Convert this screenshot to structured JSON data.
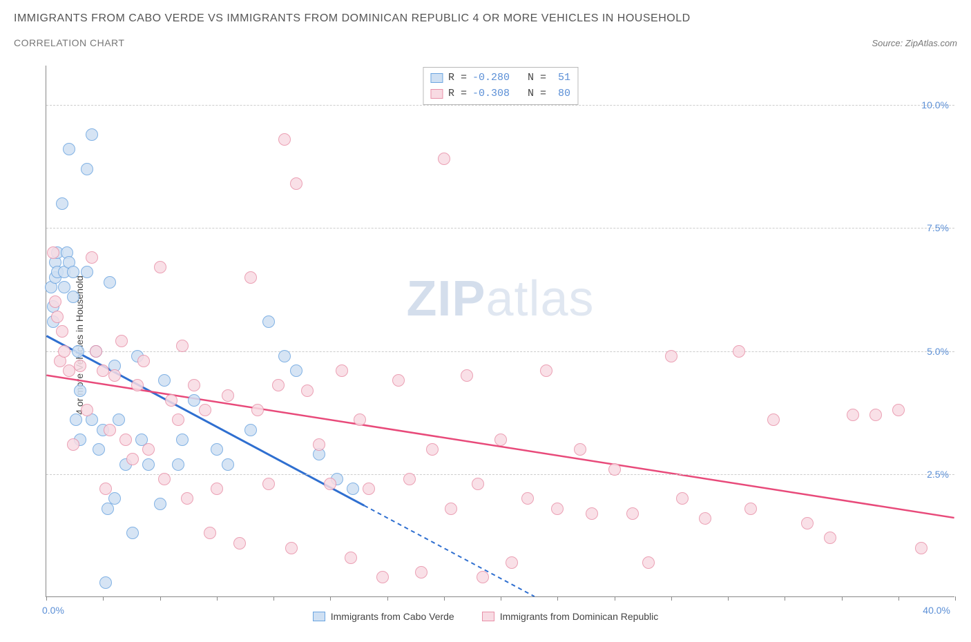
{
  "header": {
    "title": "IMMIGRANTS FROM CABO VERDE VS IMMIGRANTS FROM DOMINICAN REPUBLIC 4 OR MORE VEHICLES IN HOUSEHOLD",
    "subtitle": "CORRELATION CHART",
    "source": "Source: ZipAtlas.com"
  },
  "watermark": {
    "bold": "ZIP",
    "rest": "atlas"
  },
  "chart": {
    "type": "scatter",
    "ylabel": "4 or more Vehicles in Household",
    "xlim": [
      0,
      40
    ],
    "ylim": [
      0,
      10.8
    ],
    "x_ticks_minor": [
      0,
      2.5,
      5,
      7.5,
      10,
      12.5,
      15,
      17.5,
      20,
      22.5,
      25,
      27.5,
      30,
      32.5,
      35,
      37.5,
      40
    ],
    "x_tick_labels": {
      "left": "0.0%",
      "right": "40.0%"
    },
    "y_gridlines": [
      2.5,
      5.0,
      7.5,
      10.0
    ],
    "y_tick_labels": [
      "2.5%",
      "5.0%",
      "7.5%",
      "10.0%"
    ],
    "grid_color": "#cccccc",
    "background_color": "#ffffff",
    "axis_label_color": "#5b8fd6",
    "point_radius": 9,
    "point_stroke_width": 1.5,
    "series": [
      {
        "name": "Immigrants from Cabo Verde",
        "stroke": "#6aa4e0",
        "fill": "#cfe0f3",
        "trend_color": "#2f6fd0",
        "trend_width": 3,
        "trend_solid_xend": 14,
        "trend_start": [
          0,
          5.3
        ],
        "trend_end": [
          21.5,
          0
        ],
        "R": "-0.280",
        "N": "51",
        "points": [
          [
            0.2,
            6.3
          ],
          [
            0.3,
            5.9
          ],
          [
            0.3,
            5.6
          ],
          [
            0.4,
            6.8
          ],
          [
            0.4,
            6.5
          ],
          [
            0.5,
            7.0
          ],
          [
            0.5,
            6.6
          ],
          [
            0.7,
            8.0
          ],
          [
            0.8,
            6.6
          ],
          [
            0.8,
            6.3
          ],
          [
            0.9,
            7.0
          ],
          [
            1.0,
            9.1
          ],
          [
            1.0,
            6.8
          ],
          [
            1.2,
            6.6
          ],
          [
            1.2,
            6.1
          ],
          [
            1.3,
            3.6
          ],
          [
            1.4,
            5.0
          ],
          [
            1.5,
            4.2
          ],
          [
            1.5,
            3.2
          ],
          [
            1.8,
            8.7
          ],
          [
            1.8,
            6.6
          ],
          [
            2.0,
            9.4
          ],
          [
            2.0,
            3.6
          ],
          [
            2.2,
            5.0
          ],
          [
            2.3,
            3.0
          ],
          [
            2.5,
            3.4
          ],
          [
            2.6,
            0.3
          ],
          [
            2.7,
            1.8
          ],
          [
            2.8,
            6.4
          ],
          [
            3.0,
            4.7
          ],
          [
            3.0,
            2.0
          ],
          [
            3.2,
            3.6
          ],
          [
            3.5,
            2.7
          ],
          [
            3.8,
            1.3
          ],
          [
            4.0,
            4.9
          ],
          [
            4.2,
            3.2
          ],
          [
            4.5,
            2.7
          ],
          [
            5.0,
            1.9
          ],
          [
            5.2,
            4.4
          ],
          [
            5.8,
            2.7
          ],
          [
            6.0,
            3.2
          ],
          [
            6.5,
            4.0
          ],
          [
            7.5,
            3.0
          ],
          [
            8.0,
            2.7
          ],
          [
            9.0,
            3.4
          ],
          [
            9.8,
            5.6
          ],
          [
            10.5,
            4.9
          ],
          [
            11.0,
            4.6
          ],
          [
            12.0,
            2.9
          ],
          [
            12.8,
            2.4
          ],
          [
            13.5,
            2.2
          ]
        ]
      },
      {
        "name": "Immigrants from Dominican Republic",
        "stroke": "#e890a8",
        "fill": "#f8dbe3",
        "trend_color": "#e84a7a",
        "trend_width": 2.5,
        "trend_solid_xend": 40,
        "trend_start": [
          0,
          4.5
        ],
        "trend_end": [
          40,
          1.6
        ],
        "R": "-0.308",
        "N": "80",
        "points": [
          [
            0.3,
            7.0
          ],
          [
            0.4,
            6.0
          ],
          [
            0.5,
            5.7
          ],
          [
            0.6,
            4.8
          ],
          [
            0.7,
            5.4
          ],
          [
            0.8,
            5.0
          ],
          [
            1.0,
            4.6
          ],
          [
            1.2,
            3.1
          ],
          [
            1.5,
            4.7
          ],
          [
            1.8,
            3.8
          ],
          [
            2.0,
            6.9
          ],
          [
            2.2,
            5.0
          ],
          [
            2.5,
            4.6
          ],
          [
            2.6,
            2.2
          ],
          [
            2.8,
            3.4
          ],
          [
            3.0,
            4.5
          ],
          [
            3.3,
            5.2
          ],
          [
            3.5,
            3.2
          ],
          [
            3.8,
            2.8
          ],
          [
            4.0,
            4.3
          ],
          [
            4.3,
            4.8
          ],
          [
            4.5,
            3.0
          ],
          [
            5.0,
            6.7
          ],
          [
            5.2,
            2.4
          ],
          [
            5.5,
            4.0
          ],
          [
            5.8,
            3.6
          ],
          [
            6.0,
            5.1
          ],
          [
            6.2,
            2.0
          ],
          [
            6.5,
            4.3
          ],
          [
            7.0,
            3.8
          ],
          [
            7.2,
            1.3
          ],
          [
            7.5,
            2.2
          ],
          [
            8.0,
            4.1
          ],
          [
            8.5,
            1.1
          ],
          [
            9.0,
            6.5
          ],
          [
            9.3,
            3.8
          ],
          [
            9.8,
            2.3
          ],
          [
            10.2,
            4.3
          ],
          [
            10.5,
            9.3
          ],
          [
            10.8,
            1.0
          ],
          [
            11.0,
            8.4
          ],
          [
            11.5,
            4.2
          ],
          [
            12.0,
            3.1
          ],
          [
            12.5,
            2.3
          ],
          [
            13.0,
            4.6
          ],
          [
            13.4,
            0.8
          ],
          [
            13.8,
            3.6
          ],
          [
            14.2,
            2.2
          ],
          [
            14.8,
            0.4
          ],
          [
            15.5,
            4.4
          ],
          [
            16.0,
            2.4
          ],
          [
            16.5,
            0.5
          ],
          [
            17.0,
            3.0
          ],
          [
            17.5,
            8.9
          ],
          [
            17.8,
            1.8
          ],
          [
            18.5,
            4.5
          ],
          [
            19.0,
            2.3
          ],
          [
            19.2,
            0.4
          ],
          [
            20.0,
            3.2
          ],
          [
            20.5,
            0.7
          ],
          [
            21.2,
            2.0
          ],
          [
            22.0,
            4.6
          ],
          [
            22.5,
            1.8
          ],
          [
            23.5,
            3.0
          ],
          [
            24.0,
            1.7
          ],
          [
            25.0,
            2.6
          ],
          [
            25.8,
            1.7
          ],
          [
            26.5,
            0.7
          ],
          [
            27.5,
            4.9
          ],
          [
            28.0,
            2.0
          ],
          [
            29.0,
            1.6
          ],
          [
            30.5,
            5.0
          ],
          [
            31.0,
            1.8
          ],
          [
            32.0,
            3.6
          ],
          [
            33.5,
            1.5
          ],
          [
            34.5,
            1.2
          ],
          [
            35.5,
            3.7
          ],
          [
            36.5,
            3.7
          ],
          [
            37.5,
            3.8
          ],
          [
            38.5,
            1.0
          ]
        ]
      }
    ],
    "bottom_legend": [
      {
        "label": "Immigrants from Cabo Verde",
        "stroke": "#6aa4e0",
        "fill": "#cfe0f3"
      },
      {
        "label": "Immigrants from Dominican Republic",
        "stroke": "#e890a8",
        "fill": "#f8dbe3"
      }
    ]
  }
}
